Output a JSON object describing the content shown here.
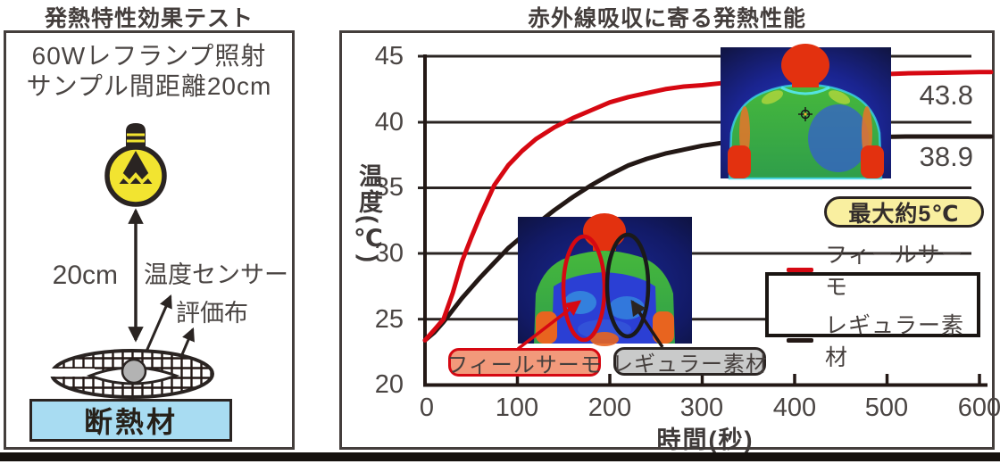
{
  "left_panel": {
    "title": "発熱特性効果テスト",
    "condition_line1": "60Wレフランプ照射",
    "condition_line2": "サンプル間距離20cm",
    "distance_label": "20cm",
    "sensor_label": "温度センサー",
    "cloth_label": "評価布",
    "insulation_label": "断熱材",
    "icons": [
      "light-bulb-icon",
      "double-arrow-icon",
      "fabric-sample-icon",
      "sensor-dot-icon"
    ]
  },
  "right_panel": {
    "title": "赤外線吸収に寄る発熱性能",
    "badge_label": "最大約5℃",
    "end_label_feelthermo": "43.8",
    "end_label_regular": "38.9",
    "callout_feelthermo": "フィールサーモ",
    "callout_regular": "レギュラー素材"
  },
  "colors": {
    "feelthermo_line": "#d60812",
    "regular_line": "#231815",
    "callout_feelthermo_fill": "#f2997b",
    "callout_regular_fill": "#c9caca",
    "badge_fill": "#f9efa0",
    "insulation_fill": "#a8dcf2",
    "bulb_yellow": "#f2e430",
    "text_dark": "#443e3c"
  },
  "chart_data": {
    "type": "line",
    "title": "赤外線吸収に寄る発熱性能",
    "xlabel": "時間(秒)",
    "ylabel": "温度(℃)",
    "xlim": [
      0,
      600
    ],
    "ylim": [
      20,
      45
    ],
    "x_ticks": [
      0,
      100,
      200,
      300,
      400,
      500,
      600
    ],
    "y_ticks": [
      20,
      25,
      30,
      35,
      40,
      45
    ],
    "grid": "horizontal",
    "legend_position": "right-middle",
    "x": [
      0,
      10,
      20,
      30,
      40,
      50,
      60,
      75,
      90,
      105,
      120,
      140,
      160,
      180,
      200,
      220,
      240,
      260,
      280,
      300,
      320,
      340,
      360,
      400,
      440,
      480,
      520,
      560,
      600
    ],
    "series": [
      {
        "name": "フィールサーモ",
        "color": "#d60812",
        "end_value": 43.8,
        "values": [
          23.4,
          24.2,
          25.0,
          27.0,
          29.4,
          31.2,
          32.9,
          35.2,
          36.7,
          37.8,
          38.7,
          39.6,
          40.3,
          40.9,
          41.5,
          41.9,
          42.2,
          42.5,
          42.7,
          42.8,
          42.95,
          43.05,
          43.15,
          43.3,
          43.45,
          43.6,
          43.7,
          43.75,
          43.8
        ]
      },
      {
        "name": "レギュラー素材",
        "color": "#231815",
        "end_value": 38.9,
        "values": [
          23.4,
          24.0,
          24.8,
          25.7,
          26.6,
          27.4,
          28.2,
          29.3,
          30.4,
          31.3,
          32.2,
          33.3,
          34.3,
          35.2,
          36.0,
          36.7,
          37.2,
          37.6,
          37.9,
          38.2,
          38.4,
          38.5,
          38.6,
          38.75,
          38.8,
          38.85,
          38.9,
          38.9,
          38.9
        ]
      }
    ],
    "annotations": [
      "最大約5℃",
      "43.8",
      "38.9"
    ]
  }
}
